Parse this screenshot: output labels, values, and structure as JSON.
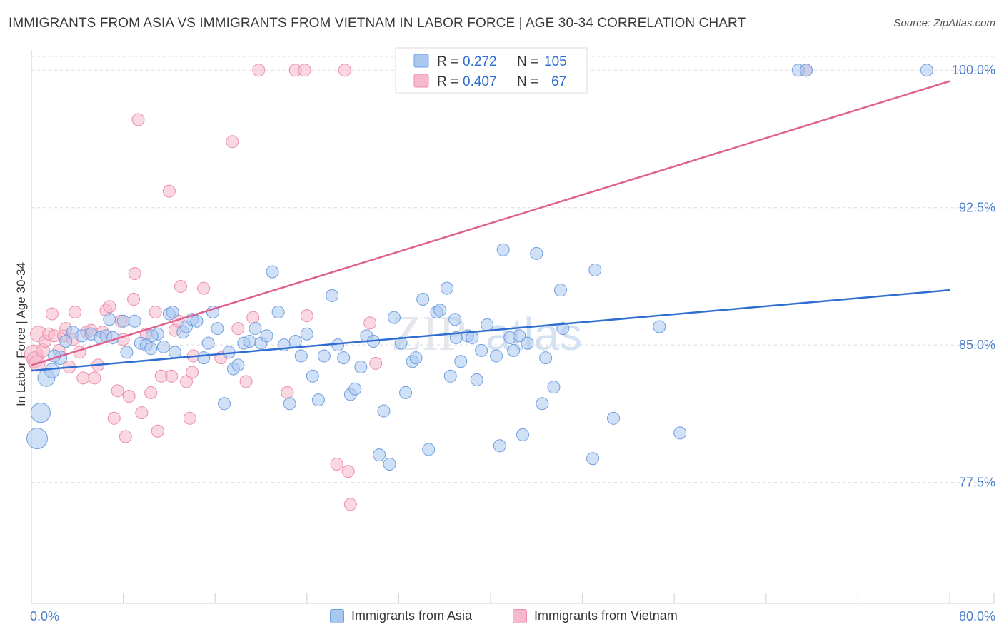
{
  "header": {
    "title": "IMMIGRANTS FROM ASIA VS IMMIGRANTS FROM VIETNAM IN LABOR FORCE | AGE 30-34 CORRELATION CHART",
    "source": "Source: ZipAtlas.com"
  },
  "watermark": {
    "zip": "ZIP",
    "atlas": "atlas"
  },
  "legend_box": {
    "rows": [
      {
        "r_label": "R =",
        "r_value": "0.272",
        "n_label": "N =",
        "n_value": "105"
      },
      {
        "r_label": "R =",
        "r_value": "0.407",
        "n_label": "N =",
        "n_value": "67"
      }
    ]
  },
  "x_axis_labels": {
    "min": "0.0%",
    "max": "80.0%"
  },
  "colors": {
    "asia_fill": "#a9c7ef",
    "asia_stroke": "#6f9fe0",
    "asia_line": "#2f6ed0",
    "vietnam_fill": "#f6b8cb",
    "vietnam_stroke": "#ec8eab",
    "vietnam_line": "#e0608d",
    "tick_label": "#4a7fd0",
    "grid": "#dcdcdc"
  },
  "chart_data": {
    "type": "scatter",
    "title": "IMMIGRANTS FROM ASIA VS IMMIGRANTS FROM VIETNAM IN LABOR FORCE | AGE 30-34 CORRELATION CHART",
    "xlabel": "",
    "ylabel": "In Labor Force | Age 30-34",
    "xlim": [
      0,
      80
    ],
    "ylim": [
      70.9,
      101.1
    ],
    "x_tick_labels": [
      "0.0%",
      "80.0%"
    ],
    "y_ticks": [
      77.5,
      85.0,
      92.5,
      100.0
    ],
    "y_tick_labels": [
      "77.5%",
      "85.0%",
      "92.5%",
      "100.0%"
    ],
    "grid": true,
    "legend_position": "top-center",
    "series": [
      {
        "name": "Immigrants from Asia",
        "R": 0.272,
        "N": 105,
        "trend": {
          "x": [
            0,
            80
          ],
          "y": [
            83.6,
            88.0
          ]
        },
        "points": [
          [
            0.8,
            81.3,
            1.6
          ],
          [
            0.5,
            79.9,
            1.7
          ],
          [
            1.3,
            83.2,
            1.4
          ],
          [
            1.8,
            83.6,
            1.2
          ],
          [
            2.5,
            84.3,
            1.1
          ],
          [
            3.0,
            85.2,
            1.0
          ],
          [
            3.6,
            85.7,
            1.0
          ],
          [
            4.4,
            85.5,
            1.0
          ],
          [
            5.2,
            85.6,
            1.0
          ],
          [
            6.0,
            85.4,
            1.0
          ],
          [
            6.5,
            85.5,
            1.0
          ],
          [
            7.1,
            85.4,
            1.0
          ],
          [
            8.0,
            86.3,
            1.0
          ],
          [
            8.3,
            84.6,
            1.0
          ],
          [
            9.0,
            86.3,
            1.0
          ],
          [
            9.5,
            85.1,
            1.0
          ],
          [
            10.0,
            85.0,
            1.0
          ],
          [
            10.4,
            84.8,
            1.0
          ],
          [
            11.0,
            85.6,
            1.0
          ],
          [
            11.5,
            84.9,
            1.0
          ],
          [
            12.0,
            86.7,
            1.0
          ],
          [
            12.3,
            86.8,
            1.0
          ],
          [
            12.5,
            84.6,
            1.0
          ],
          [
            13.2,
            85.7,
            1.0
          ],
          [
            13.5,
            86.0,
            1.0
          ],
          [
            14.0,
            86.4,
            1.0
          ],
          [
            14.4,
            86.3,
            1.0
          ],
          [
            15.0,
            84.3,
            1.0
          ],
          [
            15.4,
            85.1,
            1.0
          ],
          [
            15.8,
            86.8,
            1.0
          ],
          [
            16.2,
            85.9,
            1.0
          ],
          [
            16.8,
            81.8,
            1.0
          ],
          [
            17.2,
            84.6,
            1.0
          ],
          [
            17.6,
            83.7,
            1.0
          ],
          [
            18.0,
            83.9,
            1.0
          ],
          [
            18.5,
            85.1,
            1.0
          ],
          [
            19.0,
            85.2,
            1.0
          ],
          [
            19.5,
            85.9,
            1.0
          ],
          [
            20.0,
            85.1,
            1.0
          ],
          [
            20.5,
            85.5,
            1.0
          ],
          [
            21.0,
            89.0,
            1.0
          ],
          [
            21.5,
            86.8,
            1.0
          ],
          [
            22.0,
            85.0,
            1.0
          ],
          [
            22.5,
            81.8,
            1.0
          ],
          [
            23.0,
            85.2,
            1.0
          ],
          [
            23.5,
            84.4,
            1.0
          ],
          [
            24.0,
            85.6,
            1.0
          ],
          [
            24.5,
            83.3,
            1.0
          ],
          [
            25.0,
            82.0,
            1.0
          ],
          [
            25.5,
            84.4,
            1.0
          ],
          [
            26.2,
            87.7,
            1.0
          ],
          [
            26.7,
            85.0,
            1.0
          ],
          [
            27.2,
            84.3,
            1.0
          ],
          [
            27.8,
            82.3,
            1.0
          ],
          [
            28.2,
            82.6,
            1.0
          ],
          [
            28.7,
            83.8,
            1.0
          ],
          [
            29.2,
            85.5,
            1.0
          ],
          [
            29.8,
            85.2,
            1.0
          ],
          [
            30.3,
            79.0,
            1.0
          ],
          [
            30.7,
            81.4,
            1.0
          ],
          [
            31.2,
            78.5,
            1.0
          ],
          [
            31.6,
            86.5,
            1.0
          ],
          [
            32.2,
            85.1,
            1.0
          ],
          [
            32.6,
            82.4,
            1.0
          ],
          [
            33.2,
            84.1,
            1.0
          ],
          [
            33.5,
            84.3,
            1.0
          ],
          [
            34.1,
            87.5,
            1.0
          ],
          [
            34.6,
            79.3,
            1.0
          ],
          [
            35.3,
            86.8,
            1.0
          ],
          [
            35.6,
            86.9,
            1.0
          ],
          [
            36.2,
            88.1,
            1.0
          ],
          [
            36.5,
            83.3,
            1.0
          ],
          [
            37.0,
            85.4,
            1.0
          ],
          [
            37.4,
            84.1,
            1.0
          ],
          [
            38.0,
            85.5,
            1.0
          ],
          [
            38.4,
            85.4,
            1.0
          ],
          [
            38.8,
            83.1,
            1.0
          ],
          [
            39.2,
            84.7,
            1.0
          ],
          [
            39.7,
            86.1,
            1.0
          ],
          [
            40.5,
            84.4,
            1.0
          ],
          [
            40.8,
            79.5,
            1.0
          ],
          [
            41.1,
            90.2,
            1.0
          ],
          [
            41.7,
            85.4,
            1.0
          ],
          [
            42.0,
            84.7,
            1.0
          ],
          [
            42.5,
            85.5,
            1.0
          ],
          [
            42.8,
            80.1,
            1.0
          ],
          [
            43.2,
            85.1,
            1.0
          ],
          [
            44.0,
            90.0,
            1.0
          ],
          [
            44.5,
            81.8,
            1.0
          ],
          [
            44.8,
            84.3,
            1.0
          ],
          [
            45.5,
            82.7,
            1.0
          ],
          [
            46.1,
            88.0,
            1.0
          ],
          [
            46.3,
            85.9,
            1.0
          ],
          [
            48.9,
            78.8,
            1.0
          ],
          [
            49.1,
            89.1,
            1.0
          ],
          [
            50.7,
            81.0,
            1.0
          ],
          [
            54.7,
            86.0,
            1.0
          ],
          [
            56.5,
            80.2,
            1.0
          ],
          [
            66.8,
            100.0,
            1.0
          ],
          [
            67.5,
            100.0,
            1.0
          ],
          [
            78.0,
            100.0,
            1.0
          ],
          [
            6.8,
            86.4,
            1.0
          ],
          [
            2.0,
            84.4,
            1.0
          ],
          [
            10.5,
            85.5,
            1.0
          ],
          [
            36.9,
            86.4,
            1.0
          ]
        ]
      },
      {
        "name": "Immigrants from Vietnam",
        "R": 0.407,
        "N": 67,
        "trend": {
          "x": [
            0,
            80
          ],
          "y": [
            83.9,
            99.4
          ]
        },
        "points": [
          [
            0.2,
            84.5,
            1.5
          ],
          [
            0.3,
            84.2,
            1.3
          ],
          [
            0.5,
            84.0,
            1.3
          ],
          [
            0.6,
            85.6,
            1.3
          ],
          [
            1.0,
            84.7,
            1.1
          ],
          [
            1.2,
            85.2,
            1.0
          ],
          [
            1.5,
            85.6,
            1.0
          ],
          [
            1.8,
            86.7,
            1.0
          ],
          [
            2.0,
            85.5,
            1.0
          ],
          [
            2.4,
            84.7,
            1.0
          ],
          [
            2.8,
            85.5,
            1.0
          ],
          [
            3.0,
            85.9,
            1.0
          ],
          [
            3.3,
            83.8,
            1.0
          ],
          [
            3.6,
            85.3,
            1.0
          ],
          [
            3.8,
            86.8,
            1.0
          ],
          [
            4.2,
            84.6,
            1.0
          ],
          [
            4.5,
            83.2,
            1.0
          ],
          [
            4.8,
            85.7,
            1.0
          ],
          [
            5.2,
            85.8,
            1.0
          ],
          [
            5.5,
            83.2,
            1.0
          ],
          [
            5.8,
            83.9,
            1.0
          ],
          [
            6.2,
            85.7,
            1.0
          ],
          [
            6.5,
            86.9,
            1.0
          ],
          [
            6.8,
            87.1,
            1.0
          ],
          [
            7.2,
            81.0,
            1.0
          ],
          [
            7.5,
            82.5,
            1.0
          ],
          [
            7.8,
            86.3,
            1.0
          ],
          [
            8.0,
            85.3,
            1.0
          ],
          [
            8.2,
            80.0,
            1.0
          ],
          [
            8.5,
            82.2,
            1.0
          ],
          [
            8.9,
            87.5,
            1.0
          ],
          [
            9.0,
            88.9,
            1.0
          ],
          [
            9.3,
            97.3,
            1.0
          ],
          [
            9.6,
            81.3,
            1.0
          ],
          [
            10.0,
            85.6,
            1.0
          ],
          [
            10.4,
            82.4,
            1.0
          ],
          [
            10.8,
            86.8,
            1.0
          ],
          [
            11.0,
            80.3,
            1.0
          ],
          [
            11.3,
            83.3,
            1.0
          ],
          [
            12.2,
            83.3,
            1.0
          ],
          [
            12.0,
            93.4,
            1.0
          ],
          [
            12.5,
            85.8,
            1.0
          ],
          [
            12.8,
            86.3,
            1.0
          ],
          [
            13.0,
            88.2,
            1.0
          ],
          [
            13.5,
            83.0,
            1.0
          ],
          [
            13.8,
            81.0,
            1.0
          ],
          [
            14.0,
            83.5,
            1.0
          ],
          [
            14.1,
            84.4,
            1.0
          ],
          [
            15.0,
            88.1,
            1.0
          ],
          [
            16.5,
            84.3,
            1.0
          ],
          [
            17.5,
            96.1,
            1.0
          ],
          [
            18.0,
            85.9,
            1.0
          ],
          [
            18.7,
            83.0,
            1.0
          ],
          [
            19.3,
            86.5,
            1.0
          ],
          [
            19.8,
            100.0,
            1.0
          ],
          [
            23.0,
            100.0,
            1.0
          ],
          [
            23.8,
            100.0,
            1.0
          ],
          [
            22.3,
            82.4,
            1.0
          ],
          [
            24.0,
            86.6,
            1.0
          ],
          [
            26.6,
            78.5,
            1.0
          ],
          [
            27.3,
            100.0,
            1.0
          ],
          [
            27.6,
            78.1,
            1.0
          ],
          [
            27.8,
            76.3,
            1.0
          ],
          [
            30.0,
            84.0,
            1.0
          ],
          [
            29.5,
            86.2,
            1.0
          ],
          [
            43.8,
            100.0,
            1.0
          ],
          [
            67.5,
            100.0,
            1.0
          ]
        ]
      }
    ]
  }
}
